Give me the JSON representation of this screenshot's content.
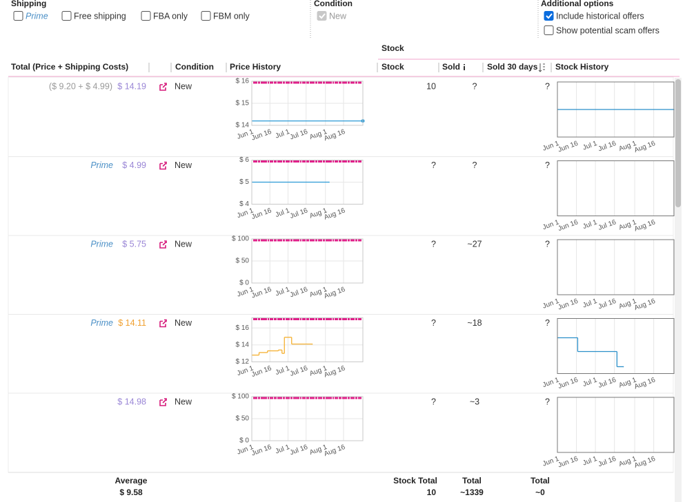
{
  "filters": {
    "shipping": {
      "label": "Shipping",
      "options": [
        {
          "label": "Prime",
          "checked": false,
          "italic": true,
          "color": "#4a8fc6"
        },
        {
          "label": "Free shipping",
          "checked": false
        },
        {
          "label": "FBA only",
          "checked": false
        },
        {
          "label": "FBM only",
          "checked": false
        }
      ]
    },
    "condition": {
      "label": "Condition",
      "options": [
        {
          "label": "New",
          "checked": true,
          "disabled": true
        }
      ]
    },
    "additional": {
      "label": "Additional options",
      "options": [
        {
          "label": "Include historical offers",
          "checked": true
        },
        {
          "label": "Show potential scam offers",
          "checked": false
        }
      ]
    }
  },
  "table": {
    "group_header": "Stock",
    "columns": [
      "Total (Price + Shipping Costs)",
      "Condition",
      "Price History",
      "Stock",
      "Sold",
      "Sold 30 days",
      "Stock History"
    ],
    "x_axis": {
      "xlim": [
        0,
        92
      ],
      "xticks": [
        {
          "value": 0,
          "label": "Jun 1"
        },
        {
          "value": 15,
          "label": "Jun 16"
        },
        {
          "value": 30,
          "label": "Jul 1"
        },
        {
          "value": 45,
          "label": "Jul 16"
        },
        {
          "value": 61,
          "label": "Aug 1"
        },
        {
          "value": 76,
          "label": "Aug 16"
        }
      ]
    },
    "rows": [
      {
        "price_detail": "($ 9.20 + $ 4.99)",
        "total": "$ 14.19",
        "total_color": "#9a86d6",
        "condition": "New",
        "stock": 10,
        "sold": "?",
        "sold_30_days": "?",
        "price_history": {
          "type": "line",
          "color": "#2a9ad6",
          "end_marker": true,
          "ylim": [
            14,
            16
          ],
          "yticks": [
            {
              "value": 16,
              "label": "$ 16"
            },
            {
              "value": 15,
              "label": "$ 15"
            },
            {
              "value": 14,
              "label": "$ 14"
            }
          ],
          "x": [
            0,
            92
          ],
          "values": [
            14.2,
            14.2
          ]
        },
        "stock_history": {
          "type": "line",
          "color": "#2a8fc9",
          "ylim": [
            0,
            20
          ],
          "x": [
            0,
            92
          ],
          "values": [
            10,
            10
          ]
        }
      },
      {
        "shipping": "Prime",
        "total": "$ 4.99",
        "total_color": "#9a86d6",
        "condition": "New",
        "stock": "?",
        "sold": "?",
        "sold_30_days": "?",
        "price_history": {
          "type": "line",
          "color": "#2a9ad6",
          "ylim": [
            4,
            6
          ],
          "yticks": [
            {
              "value": 6,
              "label": "$ 6"
            },
            {
              "value": 5,
              "label": "$ 5"
            },
            {
              "value": 4,
              "label": "$ 4"
            }
          ],
          "x": [
            0,
            64
          ],
          "values": [
            5,
            5
          ]
        }
      },
      {
        "shipping": "Prime",
        "total": "$ 5.75",
        "total_color": "#9a86d6",
        "condition": "New",
        "stock": "?",
        "sold": "~27",
        "sold_30_days": "?",
        "price_history": {
          "type": "line",
          "ylim": [
            0,
            100
          ],
          "yticks": [
            {
              "value": 100,
              "label": "$ 100"
            },
            {
              "value": 50,
              "label": "$ 50"
            },
            {
              "value": 0,
              "label": "$ 0"
            }
          ]
        }
      },
      {
        "shipping": "Prime",
        "total": "$ 14.11",
        "total_color": "#f0a030",
        "condition": "New",
        "stock": "?",
        "sold": "~18",
        "sold_30_days": "?",
        "price_history": {
          "type": "line",
          "color": "#f5b030",
          "ylim": [
            12,
            17.2
          ],
          "yticks": [
            {
              "value": 16,
              "label": "$ 16"
            },
            {
              "value": 14,
              "label": "$ 14"
            },
            {
              "value": 12,
              "label": "$ 12"
            }
          ],
          "x": [
            0,
            6,
            13,
            22,
            25,
            27,
            33,
            50
          ],
          "values": [
            12.8,
            13.1,
            13.3,
            13.4,
            13.0,
            14.9,
            14.1,
            14.1
          ]
        },
        "stock_history": {
          "type": "line",
          "color": "#2a8fc9",
          "ylim": [
            0,
            20
          ],
          "x": [
            0,
            16,
            47,
            52
          ],
          "values": [
            13,
            8,
            2.5,
            2.5
          ]
        }
      },
      {
        "total": "$ 14.98",
        "total_color": "#9a86d6",
        "condition": "New",
        "stock": "?",
        "sold": "~3",
        "sold_30_days": "?",
        "price_history": {
          "type": "line",
          "ylim": [
            0,
            100
          ],
          "yticks": [
            {
              "value": 100,
              "label": "$ 100"
            },
            {
              "value": 50,
              "label": "$ 50"
            },
            {
              "value": 0,
              "label": "$ 0"
            }
          ]
        }
      }
    ],
    "footer": [
      {
        "label": "Average",
        "value": "$ 9.58"
      },
      {
        "label": "Stock Total",
        "value": "10"
      },
      {
        "label": "Total",
        "value": "~1339"
      },
      {
        "label": "Total",
        "value": "~0"
      }
    ]
  }
}
